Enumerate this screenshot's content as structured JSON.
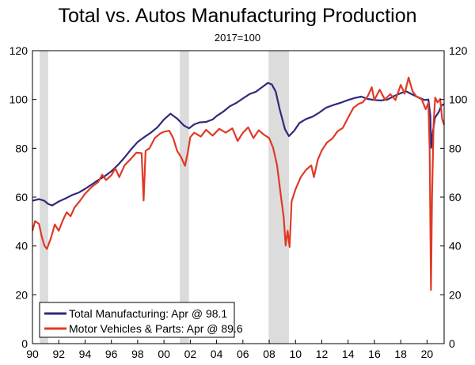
{
  "chart_data": {
    "type": "line",
    "title": "Total vs. Autos Manufacturing Production",
    "subtitle": "2017=100",
    "xlabel": "",
    "ylabel": "",
    "xlim": [
      1990,
      2021.3
    ],
    "ylim": [
      0,
      120
    ],
    "y_ticks": [
      0,
      20,
      40,
      60,
      80,
      100,
      120
    ],
    "y_tick_labels": [
      "0",
      "20",
      "40",
      "60",
      "80",
      "100",
      "120"
    ],
    "y_right_ticks": [
      0,
      20,
      40,
      60,
      80,
      100,
      120
    ],
    "y_right_tick_labels": [
      "0",
      "20",
      "40",
      "60",
      "80",
      "100",
      "120"
    ],
    "x_ticks": [
      1990,
      1992,
      1994,
      1996,
      1998,
      2000,
      2002,
      2004,
      2006,
      2008,
      2010,
      2012,
      2014,
      2016,
      2018,
      2020
    ],
    "x_tick_labels": [
      "90",
      "92",
      "94",
      "96",
      "98",
      "00",
      "02",
      "04",
      "06",
      "08",
      "10",
      "12",
      "14",
      "16",
      "18",
      "20"
    ],
    "grid": false,
    "legend_position": "bottom-left",
    "recessions": [
      [
        1990.55,
        1991.2
      ],
      [
        2001.2,
        2001.9
      ],
      [
        2007.95,
        2009.5
      ]
    ],
    "series": [
      {
        "name": "Total Manufacturing: Apr @ 98.1",
        "color": "#2e2a7c",
        "points": [
          [
            1990.0,
            58.5
          ],
          [
            1990.5,
            59.2
          ],
          [
            1990.9,
            58.5
          ],
          [
            1991.2,
            57.2
          ],
          [
            1991.5,
            56.6
          ],
          [
            1992.0,
            58.2
          ],
          [
            1992.5,
            59.4
          ],
          [
            1993.0,
            60.8
          ],
          [
            1993.5,
            61.8
          ],
          [
            1994.0,
            63.4
          ],
          [
            1994.5,
            65.2
          ],
          [
            1995.0,
            67.0
          ],
          [
            1995.5,
            68.6
          ],
          [
            1996.0,
            70.6
          ],
          [
            1996.5,
            73.2
          ],
          [
            1997.0,
            76.2
          ],
          [
            1997.5,
            79.6
          ],
          [
            1998.0,
            82.6
          ],
          [
            1998.5,
            84.6
          ],
          [
            1999.0,
            86.4
          ],
          [
            1999.5,
            88.6
          ],
          [
            2000.0,
            91.8
          ],
          [
            2000.5,
            94.2
          ],
          [
            2001.0,
            92.2
          ],
          [
            2001.5,
            89.4
          ],
          [
            2001.9,
            88.2
          ],
          [
            2002.3,
            89.8
          ],
          [
            2002.7,
            90.6
          ],
          [
            2003.2,
            90.8
          ],
          [
            2003.7,
            91.8
          ],
          [
            2004.0,
            93.2
          ],
          [
            2004.5,
            95.0
          ],
          [
            2005.0,
            97.2
          ],
          [
            2005.5,
            98.6
          ],
          [
            2006.0,
            100.4
          ],
          [
            2006.5,
            102.2
          ],
          [
            2007.0,
            103.2
          ],
          [
            2007.5,
            105.2
          ],
          [
            2007.9,
            106.8
          ],
          [
            2008.2,
            106.2
          ],
          [
            2008.5,
            103.2
          ],
          [
            2008.8,
            96.0
          ],
          [
            2009.2,
            87.8
          ],
          [
            2009.5,
            85.0
          ],
          [
            2009.9,
            87.2
          ],
          [
            2010.3,
            90.4
          ],
          [
            2010.8,
            92.0
          ],
          [
            2011.3,
            93.0
          ],
          [
            2011.8,
            94.6
          ],
          [
            2012.3,
            96.6
          ],
          [
            2012.8,
            97.6
          ],
          [
            2013.5,
            98.8
          ],
          [
            2014.0,
            99.8
          ],
          [
            2014.5,
            100.6
          ],
          [
            2015.0,
            101.2
          ],
          [
            2015.5,
            100.2
          ],
          [
            2016.0,
            99.8
          ],
          [
            2016.5,
            99.6
          ],
          [
            2017.0,
            100.0
          ],
          [
            2017.5,
            101.4
          ],
          [
            2018.0,
            102.6
          ],
          [
            2018.4,
            103.4
          ],
          [
            2018.9,
            102.0
          ],
          [
            2019.3,
            101.0
          ],
          [
            2019.8,
            99.8
          ],
          [
            2020.1,
            100.0
          ],
          [
            2020.25,
            93.5
          ],
          [
            2020.32,
            80.2
          ],
          [
            2020.45,
            87.0
          ],
          [
            2020.6,
            92.5
          ],
          [
            2020.9,
            95.0
          ],
          [
            2021.1,
            97.6
          ],
          [
            2021.3,
            98.1
          ]
        ]
      },
      {
        "name": "Motor Vehicles & Parts: Apr @ 89.6",
        "color": "#e03a26",
        "points": [
          [
            1990.0,
            46.2
          ],
          [
            1990.2,
            50.2
          ],
          [
            1990.5,
            49.0
          ],
          [
            1990.7,
            44.0
          ],
          [
            1990.9,
            40.2
          ],
          [
            1991.1,
            38.8
          ],
          [
            1991.4,
            43.2
          ],
          [
            1991.7,
            48.8
          ],
          [
            1992.0,
            46.2
          ],
          [
            1992.3,
            50.4
          ],
          [
            1992.6,
            53.8
          ],
          [
            1992.9,
            52.2
          ],
          [
            1993.2,
            55.8
          ],
          [
            1993.6,
            58.4
          ],
          [
            1994.0,
            61.4
          ],
          [
            1994.5,
            64.2
          ],
          [
            1995.0,
            66.2
          ],
          [
            1995.3,
            69.2
          ],
          [
            1995.6,
            67.0
          ],
          [
            1996.0,
            69.0
          ],
          [
            1996.3,
            71.8
          ],
          [
            1996.6,
            68.2
          ],
          [
            1997.0,
            73.0
          ],
          [
            1997.5,
            75.8
          ],
          [
            1997.9,
            78.2
          ],
          [
            1998.3,
            78.0
          ],
          [
            1998.45,
            58.6
          ],
          [
            1998.6,
            79.0
          ],
          [
            1998.9,
            80.0
          ],
          [
            1999.3,
            84.2
          ],
          [
            1999.7,
            86.0
          ],
          [
            2000.0,
            86.8
          ],
          [
            2000.4,
            87.2
          ],
          [
            2000.7,
            84.2
          ],
          [
            2001.0,
            79.0
          ],
          [
            2001.3,
            76.4
          ],
          [
            2001.6,
            72.8
          ],
          [
            2001.8,
            78.0
          ],
          [
            2002.0,
            84.6
          ],
          [
            2002.3,
            86.4
          ],
          [
            2002.8,
            84.8
          ],
          [
            2003.2,
            87.6
          ],
          [
            2003.7,
            85.2
          ],
          [
            2004.2,
            88.0
          ],
          [
            2004.7,
            86.4
          ],
          [
            2005.2,
            88.2
          ],
          [
            2005.6,
            83.0
          ],
          [
            2006.0,
            86.4
          ],
          [
            2006.4,
            88.6
          ],
          [
            2006.8,
            84.2
          ],
          [
            2007.2,
            87.4
          ],
          [
            2007.6,
            85.6
          ],
          [
            2008.0,
            84.2
          ],
          [
            2008.3,
            80.2
          ],
          [
            2008.6,
            73.0
          ],
          [
            2008.9,
            60.0
          ],
          [
            2009.1,
            52.0
          ],
          [
            2009.25,
            40.2
          ],
          [
            2009.4,
            46.2
          ],
          [
            2009.55,
            39.6
          ],
          [
            2009.7,
            58.2
          ],
          [
            2010.0,
            63.2
          ],
          [
            2010.4,
            68.2
          ],
          [
            2010.8,
            71.2
          ],
          [
            2011.2,
            73.0
          ],
          [
            2011.4,
            68.2
          ],
          [
            2011.7,
            75.4
          ],
          [
            2012.0,
            79.2
          ],
          [
            2012.4,
            82.4
          ],
          [
            2012.8,
            84.0
          ],
          [
            2013.2,
            87.0
          ],
          [
            2013.6,
            88.4
          ],
          [
            2014.0,
            92.6
          ],
          [
            2014.4,
            96.6
          ],
          [
            2014.8,
            98.2
          ],
          [
            2015.1,
            98.8
          ],
          [
            2015.5,
            101.4
          ],
          [
            2015.8,
            105.0
          ],
          [
            2016.0,
            99.8
          ],
          [
            2016.4,
            104.0
          ],
          [
            2016.8,
            100.0
          ],
          [
            2017.2,
            102.2
          ],
          [
            2017.6,
            99.8
          ],
          [
            2018.0,
            106.0
          ],
          [
            2018.3,
            102.4
          ],
          [
            2018.6,
            109.0
          ],
          [
            2018.9,
            103.4
          ],
          [
            2019.2,
            101.2
          ],
          [
            2019.6,
            100.0
          ],
          [
            2019.9,
            96.0
          ],
          [
            2020.1,
            98.6
          ],
          [
            2020.2,
            80.0
          ],
          [
            2020.3,
            22.0
          ],
          [
            2020.38,
            60.0
          ],
          [
            2020.5,
            90.0
          ],
          [
            2020.62,
            100.8
          ],
          [
            2020.8,
            98.8
          ],
          [
            2021.0,
            100.2
          ],
          [
            2021.15,
            92.0
          ],
          [
            2021.3,
            89.6
          ]
        ]
      }
    ]
  }
}
